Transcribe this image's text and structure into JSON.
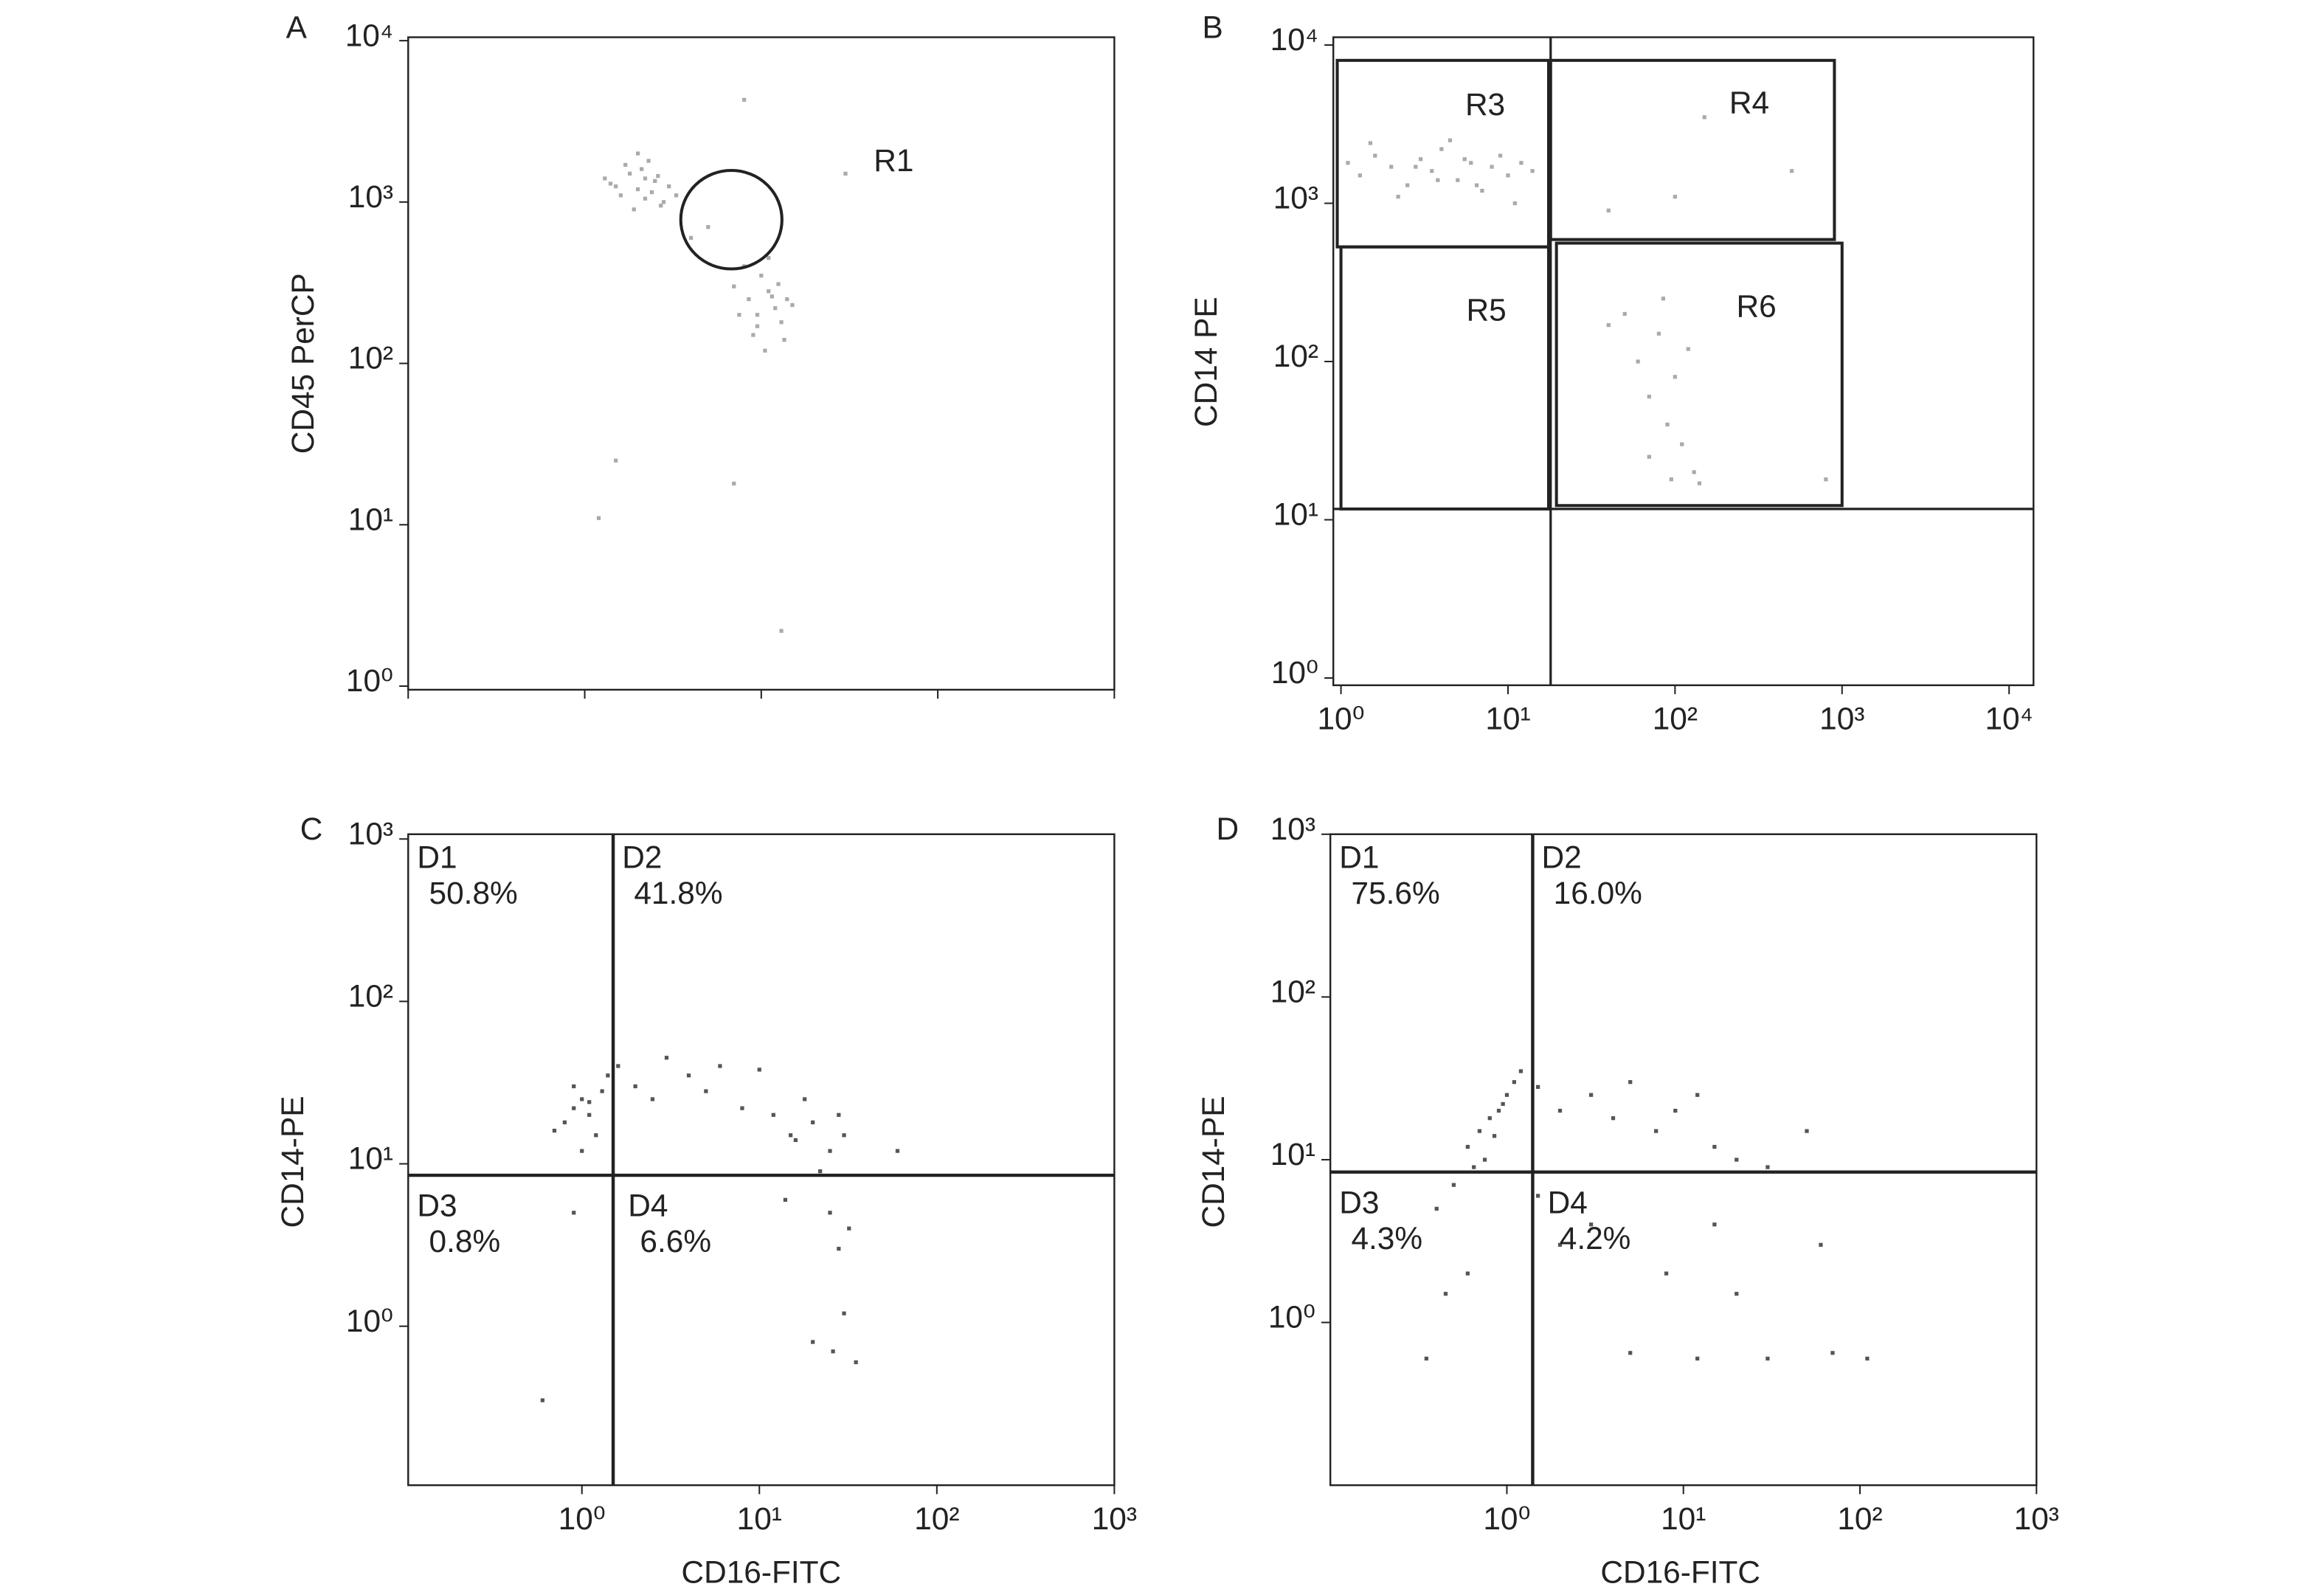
{
  "chart_data": [
    {
      "type": "scatter",
      "panel": "A",
      "y_label": "CD45 PerCP",
      "log_x": true,
      "log_y": true,
      "color": "#aaaaaa",
      "xlim": [
        1,
        10000
      ],
      "xticks": [
        1,
        10,
        100,
        1000,
        10000
      ],
      "show_xtick_labels": false,
      "ylim": [
        0.95,
        10500
      ],
      "yticks": [
        {
          "value": 1,
          "label": "10⁰"
        },
        {
          "value": 10,
          "label": "10¹"
        },
        {
          "value": 100,
          "label": "10²"
        },
        {
          "value": 1000,
          "label": "10³"
        },
        {
          "value": 10000,
          "label": "10⁴"
        }
      ],
      "x": [
        14,
        16,
        18,
        20,
        22,
        25,
        28,
        30,
        17,
        19,
        21,
        24,
        26,
        15,
        23,
        27,
        33,
        13,
        20,
        22,
        70,
        85,
        95,
        110,
        120,
        130,
        100,
        90,
        140,
        80,
        105,
        115,
        125,
        75,
        150,
        95,
        110,
        135,
        12,
        15,
        70,
        130,
        80,
        300,
        40,
        50
      ],
      "y": [
        1300,
        1100,
        1500,
        1200,
        1400,
        1350,
        1000,
        1250,
        1700,
        900,
        1600,
        1150,
        1450,
        1250,
        1800,
        950,
        1100,
        1400,
        2000,
        1050,
        300,
        250,
        200,
        280,
        220,
        180,
        350,
        150,
        250,
        400,
        120,
        260,
        310,
        200,
        230,
        170,
        450,
        140,
        11,
        25,
        18,
        2.2,
        4300,
        1500,
        600,
        700
      ],
      "regions": [
        {
          "label": "R1",
          "shape": "ellipse",
          "xlim": [
            35,
            131
          ],
          "ylim": [
            385,
            1570
          ]
        }
      ]
    },
    {
      "type": "scatter",
      "panel": "B",
      "y_label": "CD14 PE",
      "log_x": true,
      "log_y": true,
      "color": "#aaaaaa",
      "xlim": [
        0.9,
        14000
      ],
      "xticks": [
        {
          "value": 1,
          "label": "10⁰"
        },
        {
          "value": 10,
          "label": "10¹"
        },
        {
          "value": 100,
          "label": "10²"
        },
        {
          "value": 1000,
          "label": "10³"
        },
        {
          "value": 10000,
          "label": "10⁴"
        }
      ],
      "ylim": [
        0.9,
        11200
      ],
      "yticks": [
        {
          "value": 1,
          "label": "10⁰"
        },
        {
          "value": 10,
          "label": "10¹"
        },
        {
          "value": 100,
          "label": "10²"
        },
        {
          "value": 1000,
          "label": "10³"
        },
        {
          "value": 10000,
          "label": "10⁴"
        }
      ],
      "x": [
        1.1,
        1.3,
        1.6,
        2,
        2.5,
        3,
        3.5,
        4,
        5,
        6,
        7,
        8,
        9,
        10,
        12,
        14,
        1.5,
        2.2,
        2.8,
        3.8,
        4.5,
        5.5,
        6.5,
        11,
        40,
        100,
        150,
        500,
        50,
        60,
        70,
        80,
        90,
        100,
        110,
        120,
        130,
        70,
        85,
        95,
        40,
        140,
        800
      ],
      "y": [
        1800,
        1500,
        2000,
        1700,
        1300,
        1900,
        1600,
        2200,
        1400,
        1800,
        1200,
        1700,
        2000,
        1500,
        1800,
        1600,
        2400,
        1100,
        1700,
        1400,
        2500,
        1900,
        1300,
        1000,
        900,
        1100,
        3500,
        1600,
        200,
        100,
        60,
        150,
        40,
        80,
        30,
        120,
        20,
        25,
        250,
        18,
        170,
        17,
        18
      ],
      "gate_lines": {
        "x": 18,
        "y": 11.7
      },
      "regions": [
        {
          "label": "R3",
          "shape": "rect",
          "xlim": [
            0.95,
            17.5
          ],
          "ylim": [
            530,
            8000
          ]
        },
        {
          "label": "R4",
          "shape": "rect",
          "xlim": [
            18,
            900
          ],
          "ylim": [
            590,
            8000
          ]
        },
        {
          "label": "R5",
          "shape": "rect",
          "xlim": [
            1,
            17.5
          ],
          "ylim": [
            11.7,
            530
          ]
        },
        {
          "label": "R6",
          "shape": "rect",
          "xlim": [
            19.5,
            1000
          ],
          "ylim": [
            12.3,
            560
          ]
        }
      ]
    },
    {
      "type": "scatter",
      "panel": "C",
      "y_label": "CD14-PE",
      "x_label": "CD16-FITC",
      "log_x": true,
      "log_y": true,
      "color": "#555555",
      "xlim": [
        0.105,
        1000
      ],
      "xticks": [
        {
          "value": 1,
          "label": "10⁰"
        },
        {
          "value": 10,
          "label": "10¹"
        },
        {
          "value": 100,
          "label": "10²"
        },
        {
          "value": 1000,
          "label": "10³"
        }
      ],
      "ylim": [
        0.105,
        1070
      ],
      "yticks": [
        {
          "value": 1,
          "label": "10⁰"
        },
        {
          "value": 10,
          "label": "10¹"
        },
        {
          "value": 100,
          "label": "10²"
        },
        {
          "value": 1000,
          "label": "10³"
        }
      ],
      "x": [
        0.8,
        0.9,
        1.0,
        1.1,
        1.2,
        0.7,
        1.3,
        1.0,
        0.9,
        1.1,
        1.4,
        1.6,
        2,
        2.5,
        3,
        4,
        5,
        6,
        8,
        10,
        12,
        15,
        18,
        20,
        25,
        28,
        30,
        22,
        16,
        14,
        25,
        28,
        30,
        20,
        35,
        32,
        26,
        60,
        0.6,
        0.9
      ],
      "y": [
        18,
        22,
        25,
        20,
        15,
        16,
        28,
        12,
        30,
        24,
        35,
        40,
        30,
        25,
        45,
        35,
        28,
        40,
        22,
        38,
        20,
        15,
        25,
        18,
        12,
        20,
        15,
        9,
        14,
        6,
        5,
        3,
        1.2,
        0.8,
        0.6,
        4,
        0.7,
        12,
        0.35,
        5
      ],
      "quadrant_split": {
        "x": 1.5,
        "y": 8.5
      },
      "quadrants": {
        "names": [
          "D1",
          "D2",
          "D3",
          "D4"
        ],
        "values": [
          50.8,
          41.8,
          0.8,
          6.6
        ],
        "value_labels": [
          "50.8%",
          "41.8%",
          "0.8%",
          "6.6%"
        ]
      }
    },
    {
      "type": "scatter",
      "panel": "D",
      "y_label": "CD14-PE",
      "x_label": "CD16-FITC",
      "log_x": true,
      "log_y": true,
      "color": "#555555",
      "xlim": [
        0.1,
        1000
      ],
      "xticks": [
        {
          "value": 1,
          "label": "10⁰"
        },
        {
          "value": 10,
          "label": "10¹"
        },
        {
          "value": 100,
          "label": "10²"
        },
        {
          "value": 1000,
          "label": "10³"
        }
      ],
      "ylim": [
        0.1,
        1000
      ],
      "yticks": [
        {
          "value": 1,
          "label": "10⁰"
        },
        {
          "value": 10,
          "label": "10¹"
        },
        {
          "value": 100,
          "label": "10²"
        },
        {
          "value": 1000,
          "label": "10³"
        }
      ],
      "x": [
        0.6,
        0.7,
        0.8,
        0.9,
        1.0,
        0.75,
        0.85,
        0.95,
        1.1,
        0.65,
        1.2,
        1.5,
        2,
        3,
        4,
        5,
        7,
        9,
        12,
        15,
        20,
        30,
        50,
        0.5,
        0.4,
        0.35,
        0.6,
        0.45,
        1.5,
        2,
        3,
        5,
        8,
        12,
        15,
        20,
        30,
        60,
        70,
        110
      ],
      "y": [
        12,
        15,
        18,
        20,
        25,
        10,
        14,
        22,
        30,
        9,
        35,
        28,
        20,
        25,
        18,
        30,
        15,
        20,
        25,
        12,
        10,
        9,
        15,
        7,
        5,
        0.6,
        2,
        1.5,
        6,
        3,
        4,
        0.65,
        2,
        0.6,
        4,
        1.5,
        0.6,
        3,
        0.65,
        0.6
      ],
      "quadrant_split": {
        "x": 1.4,
        "y": 8.4
      },
      "quadrants": {
        "names": [
          "D1",
          "D2",
          "D3",
          "D4"
        ],
        "values": [
          75.6,
          16.0,
          4.3,
          4.2
        ],
        "value_labels": [
          "75.6%",
          "16.0%",
          "4.3%",
          "4.2%"
        ]
      }
    }
  ]
}
